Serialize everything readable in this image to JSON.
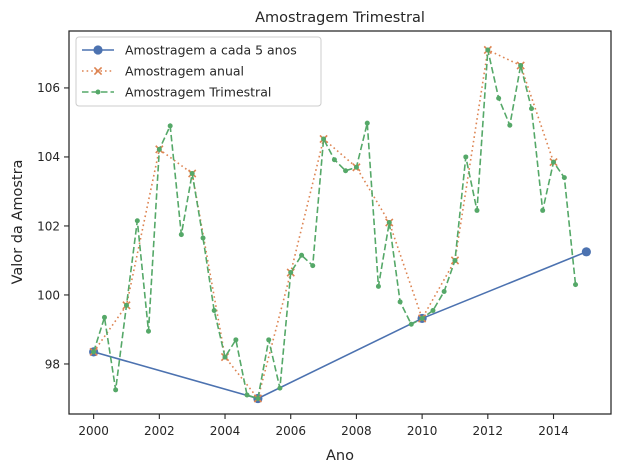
{
  "chart_data": {
    "type": "line",
    "title": "Amostragem Trimestral",
    "xlabel": "Ano",
    "ylabel": "Valor da Amostra",
    "xlim": [
      1999.25,
      2015.75
    ],
    "ylim": [
      96.55,
      107.65
    ],
    "x_ticks": [
      2000,
      2002,
      2004,
      2006,
      2008,
      2010,
      2012,
      2014
    ],
    "y_ticks": [
      98,
      100,
      102,
      104,
      106
    ],
    "grid": false,
    "legend_position": "top-left",
    "series": [
      {
        "name": "Amostragem a cada 5 anos",
        "color": "#4c72b0",
        "marker": "circle",
        "line_style": "solid",
        "x": [
          2000,
          2005,
          2010,
          2015
        ],
        "values": [
          98.35,
          97.0,
          99.32,
          101.25
        ]
      },
      {
        "name": "Amostragem anual",
        "color": "#dd8452",
        "marker": "x",
        "line_style": "dotted",
        "x": [
          2000,
          2001,
          2002,
          2003,
          2004,
          2005,
          2006,
          2007,
          2008,
          2009,
          2010,
          2011,
          2012,
          2013,
          2014
        ],
        "values": [
          98.35,
          99.7,
          104.22,
          103.52,
          98.2,
          97.0,
          100.65,
          104.52,
          103.7,
          102.1,
          99.32,
          101.0,
          107.1,
          106.65,
          103.85
        ]
      },
      {
        "name": "Amostragem Trimestral",
        "color": "#55a868",
        "marker": "point",
        "line_style": "dashed",
        "x": [
          2000,
          2000.33,
          2000.67,
          2001,
          2001.33,
          2001.67,
          2002,
          2002.33,
          2002.67,
          2003,
          2003.33,
          2003.67,
          2004,
          2004.33,
          2004.67,
          2005,
          2005.33,
          2005.67,
          2006,
          2006.33,
          2006.67,
          2007,
          2007.33,
          2007.67,
          2008,
          2008.33,
          2008.67,
          2009,
          2009.33,
          2009.67,
          2010,
          2010.33,
          2010.67,
          2011,
          2011.33,
          2011.67,
          2012,
          2012.33,
          2012.67,
          2013,
          2013.33,
          2013.67,
          2014,
          2014.33,
          2014.67
        ],
        "values": [
          98.35,
          99.35,
          97.25,
          99.7,
          102.15,
          98.95,
          104.22,
          104.9,
          101.75,
          103.52,
          101.65,
          99.55,
          98.2,
          98.7,
          97.1,
          97.0,
          98.7,
          97.3,
          100.65,
          101.15,
          100.85,
          104.52,
          103.92,
          103.6,
          103.7,
          104.98,
          100.25,
          102.1,
          99.8,
          99.15,
          99.32,
          99.55,
          100.1,
          101.0,
          104.0,
          102.45,
          107.1,
          105.7,
          104.92,
          106.65,
          105.4,
          102.45,
          103.85,
          103.4,
          100.3
        ]
      }
    ]
  }
}
